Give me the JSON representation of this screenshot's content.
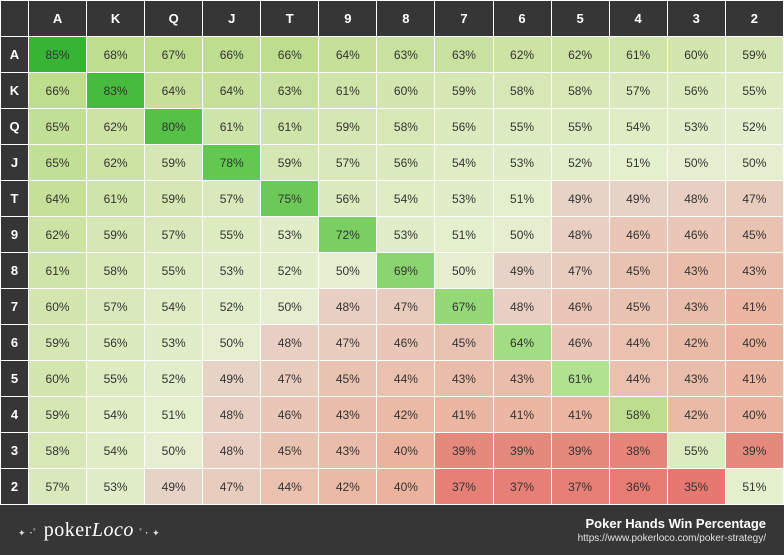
{
  "poker_chart": {
    "type": "heatmap",
    "ranks": [
      "A",
      "K",
      "Q",
      "J",
      "T",
      "9",
      "8",
      "7",
      "6",
      "5",
      "4",
      "3",
      "2"
    ],
    "values": [
      [
        85,
        68,
        67,
        66,
        66,
        64,
        63,
        63,
        62,
        62,
        61,
        60,
        59
      ],
      [
        66,
        83,
        64,
        64,
        63,
        61,
        60,
        59,
        58,
        58,
        57,
        56,
        55
      ],
      [
        65,
        62,
        80,
        61,
        61,
        59,
        58,
        56,
        55,
        55,
        54,
        53,
        52
      ],
      [
        65,
        62,
        59,
        78,
        59,
        57,
        56,
        54,
        53,
        52,
        51,
        50,
        50
      ],
      [
        64,
        61,
        59,
        57,
        75,
        56,
        54,
        53,
        51,
        49,
        49,
        48,
        47
      ],
      [
        62,
        59,
        57,
        55,
        53,
        72,
        53,
        51,
        50,
        48,
        46,
        46,
        45
      ],
      [
        61,
        58,
        55,
        53,
        52,
        50,
        69,
        50,
        49,
        47,
        45,
        43,
        43
      ],
      [
        60,
        57,
        54,
        52,
        50,
        48,
        47,
        67,
        48,
        46,
        45,
        43,
        41
      ],
      [
        59,
        56,
        53,
        50,
        48,
        47,
        46,
        45,
        64,
        46,
        44,
        42,
        40
      ],
      [
        60,
        55,
        52,
        49,
        47,
        45,
        44,
        43,
        43,
        61,
        44,
        43,
        41
      ],
      [
        59,
        54,
        51,
        48,
        46,
        43,
        42,
        41,
        41,
        41,
        58,
        42,
        40
      ],
      [
        58,
        54,
        50,
        48,
        45,
        43,
        40,
        39,
        39,
        39,
        38,
        55,
        39
      ],
      [
        57,
        53,
        49,
        47,
        44,
        42,
        40,
        37,
        37,
        37,
        36,
        35,
        51
      ]
    ],
    "cell_colors": [
      [
        "#37b435",
        "#bedd8f",
        "#bedd8f",
        "#bedd8f",
        "#bedd8f",
        "#c6e09a",
        "#c8e19e",
        "#c8e19e",
        "#cce3a4",
        "#cce3a4",
        "#cfe4a9",
        "#d3e6af",
        "#d5e7b2"
      ],
      [
        "#bedd8f",
        "#46bb3e",
        "#c6e09a",
        "#c6e09a",
        "#c8e19e",
        "#cfe4a9",
        "#d3e6af",
        "#d5e7b2",
        "#d7e8b6",
        "#d7e8b6",
        "#dae9bb",
        "#dcebbe",
        "#ddebc1"
      ],
      [
        "#c2df96",
        "#cce3a4",
        "#55c247",
        "#cfe4a9",
        "#cfe4a9",
        "#d5e7b2",
        "#d7e8b6",
        "#dcebbe",
        "#ddebc1",
        "#ddebc1",
        "#dfecc4",
        "#e1edc8",
        "#e2eecb"
      ],
      [
        "#c2df96",
        "#cce3a4",
        "#d5e7b2",
        "#63c850",
        "#d5e7b2",
        "#dae9bb",
        "#dcebbe",
        "#dfecc4",
        "#e1edc8",
        "#e2eecb",
        "#e4efce",
        "#e5efd0",
        "#e5efd0"
      ],
      [
        "#c6e09a",
        "#cfe4a9",
        "#d5e7b2",
        "#dae9bb",
        "#6cc958",
        "#dcebbe",
        "#dfecc4",
        "#e1edc8",
        "#e4efce",
        "#e7d2c6",
        "#e7d2c6",
        "#e8cfc2",
        "#e8ccbe"
      ],
      [
        "#cce3a4",
        "#d5e7b2",
        "#dae9bb",
        "#ddebc1",
        "#e1edc8",
        "#7bcf62",
        "#e1edc8",
        "#e4efce",
        "#e5efd0",
        "#e8cfc2",
        "#e9c6b6",
        "#e9c6b6",
        "#e9c3b1"
      ],
      [
        "#cfe4a9",
        "#d7e8b6",
        "#ddebc1",
        "#e1edc8",
        "#e2eecb",
        "#e5efd0",
        "#8bd570",
        "#e5efd0",
        "#e7d2c6",
        "#e8ccbe",
        "#e9c3b1",
        "#eabcaa",
        "#eabcaa"
      ],
      [
        "#d3e6af",
        "#dae9bb",
        "#dfecc4",
        "#e2eecb",
        "#e5efd0",
        "#e8cfc2",
        "#e8ccbe",
        "#95d878",
        "#e8cfc2",
        "#e9c6b6",
        "#e9c3b1",
        "#eabcaa",
        "#ebb6a2"
      ],
      [
        "#d5e7b2",
        "#dcebbe",
        "#e1edc8",
        "#e5efd0",
        "#e8cfc2",
        "#e8ccbe",
        "#e9c6b6",
        "#e9c3b1",
        "#a2dd84",
        "#e9c6b6",
        "#eac0ae",
        "#eabaa6",
        "#ebb39e"
      ],
      [
        "#d3e6af",
        "#ddebc1",
        "#e2eecb",
        "#e7d2c6",
        "#e8ccbe",
        "#e9c3b1",
        "#eac0ae",
        "#eabcaa",
        "#eabcaa",
        "#b0e290",
        "#eac0ae",
        "#eabcaa",
        "#ebb6a2"
      ],
      [
        "#d5e7b2",
        "#dfecc4",
        "#e4efce",
        "#e8cfc2",
        "#e9c6b6",
        "#eabcaa",
        "#eabaa6",
        "#ebb6a2",
        "#ebb6a2",
        "#ebb6a2",
        "#bedd8f",
        "#eabaa6",
        "#ebb39e"
      ],
      [
        "#d7e8b6",
        "#dfecc4",
        "#e5efd0",
        "#e8cfc2",
        "#e9c3b1",
        "#eabcaa",
        "#ebb39e",
        "#e5897d",
        "#e5897d",
        "#e5897d",
        "#e5857a",
        "#ddebc1",
        "#e5897d"
      ],
      [
        "#dae9bb",
        "#e1edc8",
        "#e7d2c6",
        "#e8ccbe",
        "#eac0ae",
        "#eabaa6",
        "#ebb39e",
        "#e68076",
        "#e68076",
        "#e68076",
        "#e67c72",
        "#e7786f",
        "#e4efce"
      ]
    ],
    "header_bg": "#363636",
    "header_fg": "#ffffff",
    "border_color": "#ffffff",
    "cell_fontsize": 12,
    "header_fontsize": 13,
    "text_color": "#333333",
    "diag_text_color": "#333333"
  },
  "footer": {
    "logo_text_prefix": "poker",
    "logo_text_suffix": "Loco",
    "title": "Poker Hands Win Percentage",
    "url": "https://www.pokerloco.com/poker-strategy/",
    "bg": "#363636",
    "fg": "#ffffff"
  }
}
